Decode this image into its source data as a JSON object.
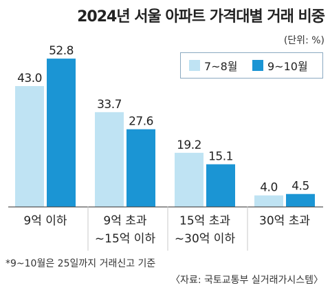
{
  "title": "2024년 서울 아파트 가격대별 거래 비중",
  "unit_label": "(단위: %)",
  "footnote": "*9~10월은 25일까지 거래신고 기준",
  "source": "〈자료: 국토교통부 실거래가시스템〉",
  "colors": {
    "series1": "#bfe3f3",
    "series2": "#1b95d4",
    "baseline": "#555555"
  },
  "chart_data": {
    "type": "bar",
    "title": "2024년 서울 아파트 가격대별 거래 비중",
    "xlabel": "",
    "ylabel": "",
    "ylim": [
      0,
      60
    ],
    "grid": false,
    "legend_position": "top-right",
    "categories": [
      [
        "9억 이하"
      ],
      [
        "9억 초과",
        "~15억 이하"
      ],
      [
        "15억 초과",
        "~30억 이하"
      ],
      [
        "30억 초과"
      ]
    ],
    "series": [
      {
        "name": "7~8월",
        "values": [
          43.0,
          33.7,
          19.2,
          4.0
        ],
        "labels": [
          "43.0",
          "33.7",
          "19.2",
          "4.0"
        ]
      },
      {
        "name": "9~10월",
        "values": [
          52.8,
          27.6,
          15.1,
          4.5
        ],
        "labels": [
          "52.8",
          "27.6",
          "15.1",
          "4.5"
        ]
      }
    ]
  }
}
